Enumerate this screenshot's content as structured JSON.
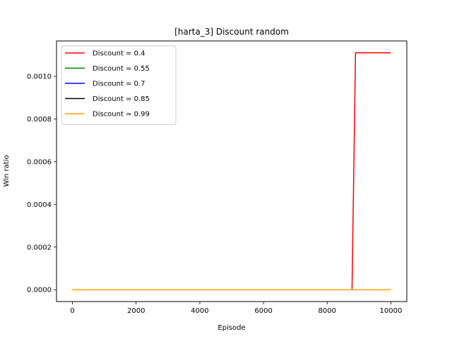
{
  "chart_data": {
    "type": "line",
    "title": "[harta_3] Discount  random",
    "xlabel": "Episode",
    "ylabel": "Win ratio",
    "xlim": [
      -500,
      10500
    ],
    "ylim": [
      -5.55e-05,
      0.0011655
    ],
    "x_ticks": [
      0,
      2000,
      4000,
      6000,
      8000,
      10000
    ],
    "x_tick_labels": [
      "0",
      "2000",
      "4000",
      "6000",
      "8000",
      "10000"
    ],
    "y_ticks": [
      0,
      0.0002,
      0.0004,
      0.0006,
      0.0008,
      0.001
    ],
    "y_tick_labels": [
      "0.0000",
      "0.0002",
      "0.0004",
      "0.0006",
      "0.0008",
      "0.0010"
    ],
    "grid": false,
    "legend_position": "top-left",
    "series": [
      {
        "name": "Discount = 0.4",
        "color": "#ff0000",
        "x": [
          0,
          8780,
          8890,
          10000
        ],
        "y": [
          0,
          0,
          0.00111,
          0.00111
        ]
      },
      {
        "name": "Discount = 0.55",
        "color": "#008000",
        "x": [
          0,
          10000
        ],
        "y": [
          0,
          0
        ]
      },
      {
        "name": "Discount = 0.7",
        "color": "#0000ff",
        "x": [
          0,
          10000
        ],
        "y": [
          0,
          0
        ]
      },
      {
        "name": "Discount = 0.85",
        "color": "#000000",
        "x": [
          0,
          10000
        ],
        "y": [
          0,
          0
        ]
      },
      {
        "name": "Discount = 0.99",
        "color": "#ffa500",
        "x": [
          0,
          10000
        ],
        "y": [
          0,
          0
        ]
      }
    ]
  }
}
